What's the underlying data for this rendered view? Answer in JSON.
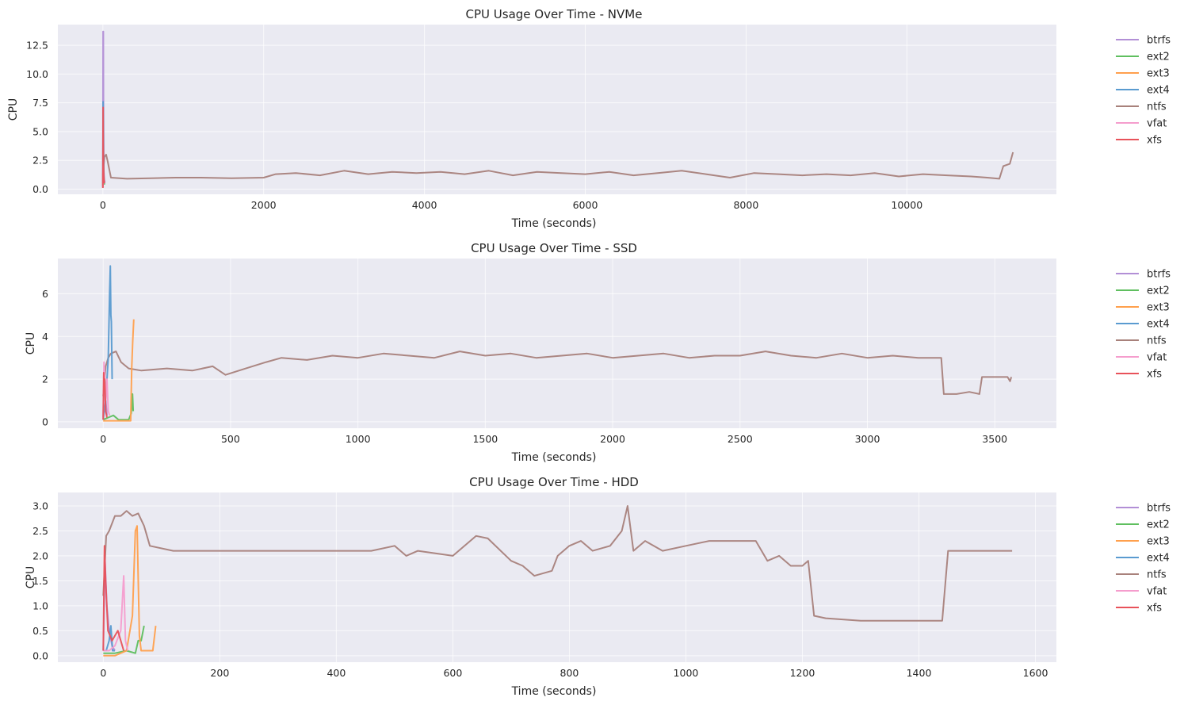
{
  "series_colors": {
    "btrfs": "#b28fd6",
    "ext2": "#5fbf5f",
    "ext3": "#ffa04d",
    "ext4": "#5a9bd0",
    "ntfs": "#a8817b",
    "vfat": "#f59dcd",
    "xfs": "#e8525a"
  },
  "chart_data": [
    {
      "type": "line",
      "title": "CPU Usage Over Time - NVMe",
      "xlabel": "Time (seconds)",
      "ylabel": "CPU",
      "xlim": [
        -560,
        11860
      ],
      "ylim": [
        -0.45,
        14.3
      ],
      "xticks": [
        0,
        2000,
        4000,
        6000,
        8000,
        10000
      ],
      "xtick_labels": [
        "0",
        "2000",
        "4000",
        "6000",
        "8000",
        "10000"
      ],
      "yticks": [
        0,
        2.5,
        5,
        7.5,
        10,
        12.5
      ],
      "ytick_labels": [
        "0.0",
        "2.5",
        "5.0",
        "7.5",
        "10.0",
        "12.5"
      ],
      "legend": "outside-right",
      "series": [
        {
          "name": "btrfs",
          "x": [
            0,
            3,
            6,
            8,
            10,
            14,
            18,
            25
          ],
          "y": [
            0.2,
            13.7,
            13.7,
            6.0,
            2.0,
            1.2,
            0.8,
            0.6
          ]
        },
        {
          "name": "ext2",
          "x": [
            0,
            4,
            8,
            12,
            16,
            20
          ],
          "y": [
            0.3,
            3.0,
            2.0,
            1.0,
            0.6,
            0.4
          ]
        },
        {
          "name": "ext3",
          "x": [
            0,
            4,
            8,
            12,
            16,
            20
          ],
          "y": [
            0.3,
            3.2,
            2.0,
            1.2,
            0.6,
            0.5
          ]
        },
        {
          "name": "ext4",
          "x": [
            0,
            3,
            6,
            10,
            14,
            20
          ],
          "y": [
            0.2,
            7.6,
            6.0,
            2.0,
            1.0,
            0.5
          ]
        },
        {
          "name": "ntfs",
          "x": [
            0,
            20,
            40,
            60,
            100,
            300,
            600,
            900,
            1200,
            1600,
            2000,
            2150,
            2400,
            2700,
            3000,
            3300,
            3600,
            3900,
            4200,
            4500,
            4800,
            5100,
            5400,
            5700,
            6000,
            6300,
            6600,
            6900,
            7200,
            7500,
            7800,
            8100,
            8400,
            8700,
            9000,
            9300,
            9600,
            9900,
            10200,
            10500,
            10800,
            11000,
            11150,
            11200,
            11280,
            11320
          ],
          "y": [
            1.2,
            2.8,
            3.0,
            2.4,
            1.0,
            0.9,
            0.95,
            1.0,
            1.0,
            0.95,
            1.0,
            1.3,
            1.4,
            1.2,
            1.6,
            1.3,
            1.5,
            1.4,
            1.5,
            1.3,
            1.6,
            1.2,
            1.5,
            1.4,
            1.3,
            1.5,
            1.2,
            1.4,
            1.6,
            1.3,
            1.0,
            1.4,
            1.3,
            1.2,
            1.3,
            1.2,
            1.4,
            1.1,
            1.3,
            1.2,
            1.1,
            1.0,
            0.9,
            2.0,
            2.2,
            3.2
          ]
        },
        {
          "name": "vfat",
          "x": [
            0,
            3,
            6,
            10,
            15
          ],
          "y": [
            0.2,
            2.0,
            1.4,
            0.8,
            0.5
          ]
        },
        {
          "name": "xfs",
          "x": [
            0,
            3,
            5,
            8,
            12,
            18
          ],
          "y": [
            0.1,
            7.1,
            4.0,
            2.0,
            1.0,
            0.5
          ]
        }
      ]
    },
    {
      "type": "line",
      "title": "CPU Usage Over Time - SSD",
      "xlabel": "Time (seconds)",
      "ylabel": "CPU",
      "xlim": [
        -178,
        3742
      ],
      "ylim": [
        -0.3,
        7.65
      ],
      "xticks": [
        0,
        500,
        1000,
        1500,
        2000,
        2500,
        3000,
        3500
      ],
      "xtick_labels": [
        "0",
        "500",
        "1000",
        "1500",
        "2000",
        "2500",
        "3000",
        "3500"
      ],
      "yticks": [
        0,
        2,
        4,
        6
      ],
      "ytick_labels": [
        "0",
        "2",
        "4",
        "6"
      ],
      "legend": "outside-right",
      "series": [
        {
          "name": "btrfs",
          "x": [
            0,
            5,
            10,
            15
          ],
          "y": [
            0.2,
            2.4,
            1.0,
            0.3
          ]
        },
        {
          "name": "ext2",
          "x": [
            0,
            20,
            40,
            60,
            80,
            100,
            110,
            115,
            118
          ],
          "y": [
            0.1,
            0.2,
            0.3,
            0.1,
            0.1,
            0.1,
            0.4,
            1.3,
            0.5
          ]
        },
        {
          "name": "ext3",
          "x": [
            0,
            30,
            60,
            90,
            108,
            112,
            116,
            120
          ],
          "y": [
            0.05,
            0.05,
            0.05,
            0.05,
            0.05,
            2.5,
            3.8,
            4.8
          ]
        },
        {
          "name": "ext4",
          "x": [
            0,
            10,
            20,
            25,
            28,
            30,
            32,
            35
          ],
          "y": [
            0.1,
            1.0,
            3.0,
            6.0,
            7.3,
            5.0,
            4.7,
            2.0
          ]
        },
        {
          "name": "ntfs",
          "x": [
            0,
            10,
            20,
            30,
            50,
            70,
            100,
            150,
            250,
            350,
            430,
            480,
            560,
            640,
            700,
            800,
            900,
            1000,
            1100,
            1200,
            1300,
            1400,
            1500,
            1600,
            1700,
            1800,
            1900,
            2000,
            2100,
            2200,
            2300,
            2400,
            2500,
            2600,
            2700,
            2800,
            2900,
            3000,
            3100,
            3200,
            3290,
            3300,
            3350,
            3400,
            3440,
            3450,
            3550,
            3560,
            3565
          ],
          "y": [
            1.2,
            2.6,
            3.0,
            3.2,
            3.3,
            2.8,
            2.5,
            2.4,
            2.5,
            2.4,
            2.6,
            2.2,
            2.5,
            2.8,
            3.0,
            2.9,
            3.1,
            3.0,
            3.2,
            3.1,
            3.0,
            3.3,
            3.1,
            3.2,
            3.0,
            3.1,
            3.2,
            3.0,
            3.1,
            3.2,
            3.0,
            3.1,
            3.1,
            3.3,
            3.1,
            3.0,
            3.2,
            3.0,
            3.1,
            3.0,
            3.0,
            1.3,
            1.3,
            1.4,
            1.3,
            2.1,
            2.1,
            1.9,
            2.1
          ]
        },
        {
          "name": "vfat",
          "x": [
            0,
            3,
            6,
            10,
            15,
            20,
            25
          ],
          "y": [
            0.2,
            2.8,
            2.2,
            1.0,
            2.0,
            0.5,
            0.3
          ]
        },
        {
          "name": "xfs",
          "x": [
            0,
            2,
            4,
            6,
            10,
            15
          ],
          "y": [
            0.1,
            2.3,
            1.5,
            2.0,
            0.5,
            0.2
          ]
        }
      ]
    },
    {
      "type": "line",
      "title": "CPU Usage Over Time - HDD",
      "xlabel": "Time (seconds)",
      "ylabel": "CPU",
      "xlim": [
        -78,
        1636
      ],
      "ylim": [
        -0.13,
        3.27
      ],
      "xticks": [
        0,
        200,
        400,
        600,
        800,
        1000,
        1200,
        1400,
        1600
      ],
      "xtick_labels": [
        "0",
        "200",
        "400",
        "600",
        "800",
        "1000",
        "1200",
        "1400",
        "1600"
      ],
      "yticks": [
        0,
        0.5,
        1,
        1.5,
        2,
        2.5,
        3
      ],
      "ytick_labels": [
        "0.0",
        "0.5",
        "1.0",
        "1.5",
        "2.0",
        "2.5",
        "3.0"
      ],
      "legend": "outside-right",
      "series": [
        {
          "name": "btrfs",
          "x": [
            0,
            3,
            6,
            10,
            15,
            20
          ],
          "y": [
            0.1,
            1.9,
            1.0,
            0.5,
            0.2,
            0.1
          ]
        },
        {
          "name": "ext2",
          "x": [
            0,
            20,
            40,
            55,
            60,
            65,
            70
          ],
          "y": [
            0.05,
            0.05,
            0.1,
            0.05,
            0.3,
            0.3,
            0.6
          ]
        },
        {
          "name": "ext3",
          "x": [
            0,
            20,
            40,
            50,
            55,
            58,
            62,
            65,
            75,
            85,
            90
          ],
          "y": [
            0.0,
            0.0,
            0.1,
            0.8,
            2.5,
            2.6,
            0.4,
            0.1,
            0.1,
            0.1,
            0.6
          ]
        },
        {
          "name": "ext4",
          "x": [
            0,
            5,
            10,
            13,
            16,
            20
          ],
          "y": [
            0.1,
            0.1,
            0.3,
            0.6,
            0.1,
            0.1
          ]
        },
        {
          "name": "ntfs",
          "x": [
            0,
            5,
            10,
            20,
            30,
            40,
            50,
            60,
            70,
            80,
            120,
            200,
            300,
            400,
            460,
            500,
            520,
            540,
            600,
            640,
            660,
            700,
            720,
            740,
            770,
            780,
            800,
            820,
            840,
            870,
            890,
            900,
            910,
            930,
            960,
            1000,
            1040,
            1080,
            1120,
            1140,
            1160,
            1180,
            1200,
            1210,
            1220,
            1240,
            1300,
            1360,
            1400,
            1440,
            1450,
            1500,
            1550,
            1560
          ],
          "y": [
            1.2,
            2.4,
            2.5,
            2.8,
            2.8,
            2.9,
            2.8,
            2.85,
            2.6,
            2.2,
            2.1,
            2.1,
            2.1,
            2.1,
            2.1,
            2.2,
            2.0,
            2.1,
            2.0,
            2.4,
            2.35,
            1.9,
            1.8,
            1.6,
            1.7,
            2.0,
            2.2,
            2.3,
            2.1,
            2.2,
            2.5,
            3.0,
            2.1,
            2.3,
            2.1,
            2.2,
            2.3,
            2.3,
            2.3,
            1.9,
            2.0,
            1.8,
            1.8,
            1.9,
            0.8,
            0.75,
            0.7,
            0.7,
            0.7,
            0.7,
            2.1,
            2.1,
            2.1,
            2.1
          ]
        },
        {
          "name": "vfat",
          "x": [
            0,
            10,
            20,
            30,
            35,
            38,
            42
          ],
          "y": [
            0.1,
            0.1,
            0.2,
            0.5,
            1.6,
            0.3,
            0.1
          ]
        },
        {
          "name": "xfs",
          "x": [
            0,
            2,
            4,
            8,
            15,
            25,
            35
          ],
          "y": [
            0.1,
            2.2,
            1.5,
            0.5,
            0.3,
            0.5,
            0.1
          ]
        }
      ]
    }
  ]
}
